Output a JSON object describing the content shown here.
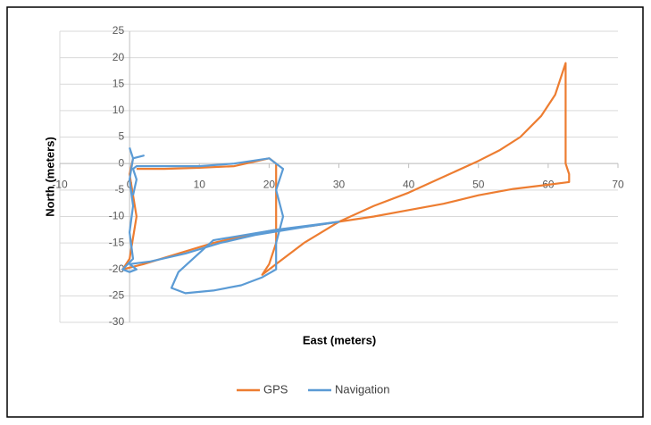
{
  "chart_data": {
    "type": "scatter-line",
    "x_label": "East (meters)",
    "y_label": "North (meters)",
    "xlim": [
      -10,
      70
    ],
    "ylim": [
      -30,
      25
    ],
    "xticks": [
      -10,
      0,
      10,
      20,
      30,
      40,
      50,
      60,
      70
    ],
    "yticks": [
      -30,
      -25,
      -20,
      -15,
      -10,
      -5,
      0,
      5,
      10,
      15,
      20,
      25
    ],
    "grid": true,
    "legend": "bottom",
    "series": [
      {
        "name": "GPS",
        "color": "#ed7d31",
        "x": [
          0.5,
          0,
          0.5,
          1,
          0.5,
          0,
          -1,
          2,
          7,
          12,
          17,
          21,
          26,
          30,
          35,
          40,
          45,
          50,
          55,
          60,
          63,
          63,
          62.5,
          62.5,
          62.5,
          61,
          59,
          56,
          53,
          50,
          45,
          40,
          35,
          30,
          25,
          21,
          19,
          20,
          21,
          21,
          21,
          21,
          20,
          15,
          10,
          5,
          1
        ],
        "values": [
          1,
          -2,
          -6,
          -10,
          -14,
          -18,
          -20,
          -19,
          -17,
          -15,
          -13.5,
          -12.5,
          -11.8,
          -11,
          -10,
          -8.8,
          -7.6,
          -6,
          -4.8,
          -4,
          -3.5,
          -2,
          0,
          10,
          19,
          13,
          9,
          5,
          2.5,
          0.5,
          -2.5,
          -5.5,
          -8,
          -11,
          -15,
          -19,
          -21,
          -19,
          -15,
          -10,
          -5,
          0,
          1,
          -0.5,
          -0.8,
          -1,
          -1
        ]
      },
      {
        "name": "Navigation",
        "color": "#5b9bd5",
        "x": [
          0,
          0.5,
          2,
          0.5,
          0,
          0.5,
          0,
          0.5,
          -1,
          0,
          1,
          0,
          3,
          8,
          13,
          18,
          25,
          30,
          21,
          12,
          7,
          6,
          8,
          12,
          16,
          19,
          21,
          21,
          22,
          21,
          22,
          21,
          20,
          15,
          10,
          5,
          1,
          0.5,
          1,
          0.5
        ],
        "values": [
          3,
          1,
          1.5,
          1,
          -3,
          -8,
          -13,
          -18,
          -20,
          -20.5,
          -20,
          -19,
          -18.5,
          -17,
          -15,
          -13.5,
          -12,
          -11,
          -12.5,
          -14.5,
          -20.5,
          -23.5,
          -24.5,
          -24,
          -23,
          -21.5,
          -20,
          -15,
          -10,
          -5,
          -1,
          0,
          1,
          0,
          -0.5,
          -0.5,
          -0.5,
          -1,
          -3,
          -6
        ]
      }
    ]
  }
}
